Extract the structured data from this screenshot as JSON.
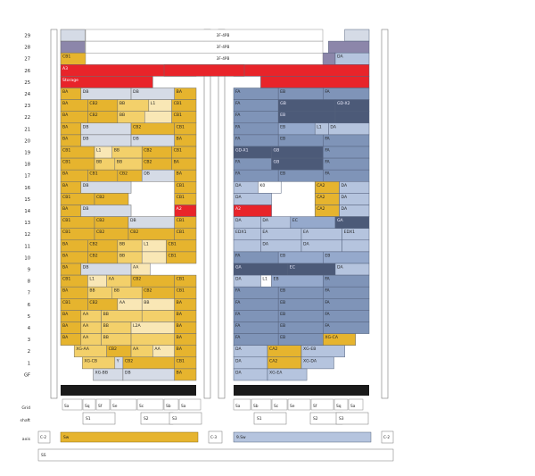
{
  "colors": {
    "gold": "#e6b42e",
    "goldDark": "#cf9a1c",
    "goldLight": "#f3d06a",
    "cream": "#f9e7b5",
    "lightGrey": "#d5dbe6",
    "blue": "#7f94b8",
    "blueMid": "#95a9cc",
    "blueLight": "#b5c4de",
    "navy": "#4c5a78",
    "red": "#e8242a",
    "purple": "#8c86aa",
    "black": "#1a1a1a"
  },
  "floors": [
    "29",
    "28",
    "27",
    "26",
    "25",
    "24",
    "23",
    "22",
    "21",
    "20",
    "19",
    "18",
    "17",
    "16",
    "15",
    "14",
    "13",
    "12",
    "11",
    "10",
    "9",
    "8",
    "7",
    "6",
    "5",
    "4",
    "3",
    "2",
    "1",
    "GF"
  ],
  "top_band_labels": [
    "3F-4PB",
    "3F-4PB",
    "3F-4PB"
  ],
  "left_bank": {
    "29": [
      [
        0,
        0.18,
        "lightGrey",
        ""
      ],
      [
        0.18,
        1,
        "white",
        ""
      ]
    ],
    "28": [
      [
        0,
        0.18,
        "purple",
        ""
      ],
      [
        0.18,
        1,
        "white",
        ""
      ]
    ],
    "27": [
      [
        0,
        0.27,
        "gold",
        "CB1"
      ],
      [
        0.27,
        0.38,
        "purple",
        ""
      ],
      [
        0.38,
        1,
        "white",
        ""
      ]
    ],
    "26": [
      [
        0,
        1,
        "red",
        "A3"
      ]
    ],
    "25": [
      [
        0,
        0.68,
        "red",
        "Storage"
      ],
      [
        0.68,
        1,
        "white",
        ""
      ]
    ],
    "24": [
      [
        0,
        0.15,
        "gold",
        "BA"
      ],
      [
        0.15,
        0.52,
        "lightGrey",
        "DB"
      ],
      [
        0.52,
        0.84,
        "lightGrey",
        "DB"
      ],
      [
        0.84,
        1,
        "gold",
        "BA"
      ]
    ],
    "23": [
      [
        0,
        0.2,
        "gold",
        "BA"
      ],
      [
        0.2,
        0.42,
        "gold",
        "CB2"
      ],
      [
        0.42,
        0.65,
        "goldLight",
        "BB"
      ],
      [
        0.65,
        0.82,
        "cream",
        "L1"
      ],
      [
        0.82,
        1,
        "gold",
        "CB1"
      ]
    ],
    "22": [
      [
        0,
        0.2,
        "gold",
        "BA"
      ],
      [
        0.2,
        0.42,
        "gold",
        "CB2"
      ],
      [
        0.42,
        0.62,
        "goldLight",
        "BB"
      ],
      [
        0.62,
        0.82,
        "cream",
        ""
      ],
      [
        0.82,
        1,
        "gold",
        "CB1"
      ]
    ],
    "21": [
      [
        0,
        0.15,
        "gold",
        "BA"
      ],
      [
        0.15,
        0.52,
        "lightGrey",
        "DB"
      ],
      [
        0.52,
        0.84,
        "gold",
        "CB2"
      ],
      [
        0.84,
        1,
        "gold",
        "CB1"
      ]
    ],
    "20": [
      [
        0,
        0.15,
        "gold",
        "BA"
      ],
      [
        0.15,
        0.52,
        "lightGrey",
        "DB"
      ],
      [
        0.52,
        0.84,
        "lightGrey",
        "DB"
      ],
      [
        0.84,
        1,
        "gold",
        "BA"
      ]
    ],
    "19": [
      [
        0,
        0.25,
        "gold",
        "CB1"
      ],
      [
        0.25,
        0.38,
        "cream",
        "L1"
      ],
      [
        0.38,
        0.6,
        "goldLight",
        "BB"
      ],
      [
        0.6,
        0.82,
        "gold",
        "CB2"
      ],
      [
        0.82,
        1,
        "gold",
        "CB1"
      ]
    ],
    "18": [
      [
        0,
        0.25,
        "gold",
        "CB1"
      ],
      [
        0.25,
        0.4,
        "goldLight",
        "BB"
      ],
      [
        0.4,
        0.6,
        "goldLight",
        "BB"
      ],
      [
        0.6,
        0.82,
        "gold",
        "CB2"
      ],
      [
        0.82,
        1,
        "gold",
        "BA"
      ]
    ],
    "17": [
      [
        0,
        0.2,
        "gold",
        "BA"
      ],
      [
        0.2,
        0.42,
        "gold",
        "CB1"
      ],
      [
        0.42,
        0.6,
        "gold",
        "CB2"
      ],
      [
        0.6,
        0.84,
        "lightGrey",
        "DB"
      ],
      [
        0.84,
        1,
        "gold",
        "BA"
      ]
    ],
    "16": [
      [
        0,
        0.15,
        "gold",
        "BA"
      ],
      [
        0.15,
        0.52,
        "lightGrey",
        "DB"
      ],
      [
        0.52,
        0.84,
        "white",
        ""
      ],
      [
        0.84,
        1,
        "gold",
        "CB1"
      ]
    ],
    "15": [
      [
        0,
        0.25,
        "gold",
        "CB1"
      ],
      [
        0.25,
        0.5,
        "gold",
        "CB2"
      ],
      [
        0.5,
        0.84,
        "white",
        ""
      ],
      [
        0.84,
        1,
        "gold",
        "CB1"
      ]
    ],
    "14": [
      [
        0,
        0.15,
        "gold",
        "BA"
      ],
      [
        0.15,
        0.52,
        "lightGrey",
        "DB"
      ],
      [
        0.52,
        0.84,
        "white",
        ""
      ],
      [
        0.84,
        1,
        "red",
        "A2"
      ]
    ],
    "13": [
      [
        0,
        0.25,
        "gold",
        "CB1"
      ],
      [
        0.25,
        0.5,
        "gold",
        "CB2"
      ],
      [
        0.5,
        0.84,
        "lightGrey",
        "DB"
      ],
      [
        0.84,
        1,
        "gold",
        "CB1"
      ]
    ],
    "12": [
      [
        0,
        0.25,
        "gold",
        "CB1"
      ],
      [
        0.25,
        0.5,
        "gold",
        "CB2"
      ],
      [
        0.5,
        0.84,
        "gold",
        "CB2"
      ],
      [
        0.84,
        1,
        "gold",
        "CB1"
      ]
    ],
    "11": [
      [
        0,
        0.2,
        "gold",
        "BA"
      ],
      [
        0.2,
        0.42,
        "gold",
        "CB2"
      ],
      [
        0.42,
        0.6,
        "goldLight",
        "BB"
      ],
      [
        0.6,
        0.78,
        "cream",
        "L1"
      ],
      [
        0.78,
        1,
        "gold",
        "CB1"
      ]
    ],
    "10": [
      [
        0,
        0.2,
        "gold",
        "BA"
      ],
      [
        0.2,
        0.42,
        "gold",
        "CB2"
      ],
      [
        0.42,
        0.6,
        "goldLight",
        "BB"
      ],
      [
        0.6,
        0.78,
        "cream",
        ""
      ],
      [
        0.78,
        1,
        "gold",
        "CB1"
      ]
    ],
    "9": [
      [
        0,
        0.15,
        "gold",
        "BA"
      ],
      [
        0.15,
        0.52,
        "lightGrey",
        "DB"
      ],
      [
        0.52,
        0.66,
        "cream",
        "AA"
      ],
      [
        0.66,
        1,
        "white",
        ""
      ]
    ],
    "8": [
      [
        0,
        0.2,
        "gold",
        "CB1"
      ],
      [
        0.2,
        0.34,
        "cream",
        "L1"
      ],
      [
        0.34,
        0.52,
        "goldLight",
        "AA"
      ],
      [
        0.52,
        0.84,
        "gold",
        "CB2"
      ],
      [
        0.84,
        1,
        "gold",
        "CB1"
      ]
    ],
    "7": [
      [
        0,
        0.2,
        "gold",
        "BA"
      ],
      [
        0.2,
        0.38,
        "goldLight",
        "BB"
      ],
      [
        0.38,
        0.6,
        "goldLight",
        "BB"
      ],
      [
        0.6,
        0.84,
        "gold",
        "CB2"
      ],
      [
        0.84,
        1,
        "gold",
        "CB1"
      ]
    ],
    "6": [
      [
        0,
        0.2,
        "gold",
        "CB1"
      ],
      [
        0.2,
        0.42,
        "gold",
        "CB2"
      ],
      [
        0.42,
        0.6,
        "cream",
        "AA"
      ],
      [
        0.6,
        0.84,
        "cream",
        "BB"
      ],
      [
        0.84,
        1,
        "gold",
        "BA"
      ]
    ],
    "5": [
      [
        0,
        0.15,
        "gold",
        "BA"
      ],
      [
        0.15,
        0.3,
        "goldLight",
        "AA"
      ],
      [
        0.3,
        0.6,
        "goldLight",
        "BB"
      ],
      [
        0.6,
        0.84,
        "goldLight",
        ""
      ],
      [
        0.84,
        1,
        "gold",
        "BA"
      ]
    ],
    "4": [
      [
        0,
        0.15,
        "gold",
        "BA"
      ],
      [
        0.15,
        0.3,
        "goldLight",
        "AA"
      ],
      [
        0.3,
        0.52,
        "goldLight",
        "BB"
      ],
      [
        0.52,
        0.84,
        "cream",
        "L2A"
      ],
      [
        0.84,
        1,
        "gold",
        "BA"
      ]
    ],
    "3": [
      [
        0,
        0.15,
        "gold",
        "BA"
      ],
      [
        0.15,
        0.3,
        "goldLight",
        "AA"
      ],
      [
        0.3,
        0.52,
        "goldLight",
        "BB"
      ],
      [
        0.52,
        0.84,
        "goldLight",
        ""
      ],
      [
        0.84,
        1,
        "gold",
        "BA"
      ]
    ],
    "2": [
      [
        0,
        0.1,
        "white",
        ""
      ],
      [
        0.1,
        0.34,
        "goldLight",
        "XG-AA"
      ],
      [
        0.34,
        0.52,
        "gold",
        "CB2"
      ],
      [
        0.52,
        0.68,
        "goldLight",
        "AA"
      ],
      [
        0.68,
        0.84,
        "cream",
        "AA"
      ],
      [
        0.84,
        1,
        "gold",
        "BA"
      ]
    ],
    "1": [
      [
        0,
        0.16,
        "white",
        ""
      ],
      [
        0.16,
        0.4,
        "goldLight",
        "XG-CB"
      ],
      [
        0.4,
        0.46,
        "lightGrey",
        "Y"
      ],
      [
        0.46,
        0.84,
        "gold",
        "CB2"
      ],
      [
        0.84,
        1,
        "gold",
        "CB1"
      ]
    ],
    "0": [
      [
        0,
        0.24,
        "white",
        ""
      ],
      [
        0.24,
        0.46,
        "lightGrey",
        "XG-BB"
      ],
      [
        0.46,
        0.84,
        "lightGrey",
        "DB"
      ],
      [
        0.84,
        1,
        "gold",
        "BA"
      ]
    ],
    "GF": [
      [
        0,
        0.46,
        "white",
        ""
      ],
      [
        0.46,
        0.84,
        "gold",
        "CB2"
      ],
      [
        0.84,
        1,
        "gold",
        "CB1"
      ]
    ]
  },
  "right_bank": {
    "29": [
      [
        0,
        0.82,
        "white",
        ""
      ],
      [
        0.82,
        1,
        "lightGrey",
        ""
      ]
    ],
    "28": [
      [
        0,
        0.7,
        "white",
        ""
      ],
      [
        0.7,
        1,
        "purple",
        ""
      ]
    ],
    "27": [
      [
        0,
        0.6,
        "white",
        ""
      ],
      [
        0.6,
        0.75,
        "purple",
        ""
      ],
      [
        0.75,
        1,
        "blueLight",
        "DA"
      ]
    ],
    "26": [
      [
        0,
        1,
        "red",
        ""
      ]
    ],
    "25": [
      [
        0,
        0.2,
        "white",
        ""
      ],
      [
        0.2,
        1,
        "red",
        ""
      ]
    ],
    "24": [
      [
        0,
        0.33,
        "blue",
        "FA"
      ],
      [
        0.33,
        0.66,
        "blue",
        "EB"
      ],
      [
        0.66,
        1,
        "blue",
        "FA"
      ]
    ],
    "23": [
      [
        0,
        0.33,
        "blue",
        "FA"
      ],
      [
        0.33,
        0.75,
        "navy",
        "GB"
      ],
      [
        0.75,
        1,
        "navy",
        "GD-X2"
      ]
    ],
    "22": [
      [
        0,
        0.33,
        "blue",
        "FA"
      ],
      [
        0.33,
        0.75,
        "navy",
        "EB"
      ],
      [
        0.75,
        1,
        "navy",
        ""
      ]
    ],
    "21": [
      [
        0,
        0.33,
        "blue",
        "FA"
      ],
      [
        0.33,
        0.6,
        "blueMid",
        "EB"
      ],
      [
        0.6,
        0.7,
        "blueLight",
        "L1"
      ],
      [
        0.7,
        1,
        "blueLight",
        "DA"
      ]
    ],
    "20": [
      [
        0,
        0.33,
        "blue",
        "FA"
      ],
      [
        0.33,
        0.66,
        "blue",
        "EB"
      ],
      [
        0.66,
        1,
        "blue",
        "FA"
      ]
    ],
    "19": [
      [
        0,
        0.28,
        "navy",
        "GD-X1"
      ],
      [
        0.28,
        0.66,
        "navy",
        "GB"
      ],
      [
        0.66,
        1,
        "blue",
        "FA"
      ]
    ],
    "18": [
      [
        0,
        0.28,
        "blue",
        "FA"
      ],
      [
        0.28,
        0.66,
        "navy",
        "GB"
      ],
      [
        0.66,
        1,
        "blue",
        "FA"
      ]
    ],
    "17": [
      [
        0,
        0.33,
        "blue",
        "FA"
      ],
      [
        0.33,
        0.66,
        "blue",
        "EB"
      ],
      [
        0.66,
        1,
        "blue",
        "FA"
      ]
    ],
    "16": [
      [
        0,
        0.18,
        "blueLight",
        "DA"
      ],
      [
        0.18,
        0.35,
        "white",
        "K0"
      ],
      [
        0.35,
        0.6,
        "white",
        ""
      ],
      [
        0.6,
        0.78,
        "gold",
        "CA2"
      ],
      [
        0.78,
        1,
        "blueLight",
        "DA"
      ]
    ],
    "15": [
      [
        0,
        0.28,
        "blueLight",
        "DA"
      ],
      [
        0.28,
        0.6,
        "white",
        ""
      ],
      [
        0.6,
        0.78,
        "gold",
        "CA2"
      ],
      [
        0.78,
        1,
        "blueLight",
        "DA"
      ]
    ],
    "14": [
      [
        0,
        0.28,
        "red",
        "A2"
      ],
      [
        0.28,
        0.6,
        "white",
        ""
      ],
      [
        0.6,
        0.78,
        "gold",
        "CA2"
      ],
      [
        0.78,
        1,
        "blueLight",
        "DA"
      ]
    ],
    "13": [
      [
        0,
        0.2,
        "blueLight",
        "DA"
      ],
      [
        0.2,
        0.42,
        "blueLight",
        "DA"
      ],
      [
        0.42,
        0.75,
        "blueMid",
        "EC"
      ],
      [
        0.75,
        1,
        "navy",
        "GA"
      ]
    ],
    "12": [
      [
        0,
        0.2,
        "blueLight",
        "EDX1"
      ],
      [
        0.2,
        0.5,
        "blueLight",
        "EA"
      ],
      [
        0.5,
        0.8,
        "blueLight",
        "EA"
      ],
      [
        0.8,
        1,
        "blueLight",
        "EDX1"
      ]
    ],
    "11": [
      [
        0,
        0.2,
        "blueLight",
        ""
      ],
      [
        0.2,
        0.5,
        "blueLight",
        "DA"
      ],
      [
        0.5,
        0.8,
        "blueLight",
        "DA"
      ],
      [
        0.8,
        1,
        "blueLight",
        ""
      ]
    ],
    "10": [
      [
        0,
        0.33,
        "blue",
        "FA"
      ],
      [
        0.33,
        0.66,
        "blueMid",
        "EB"
      ],
      [
        0.66,
        1,
        "blueMid",
        "EB"
      ]
    ],
    "9": [
      [
        0,
        0.4,
        "navy",
        "GA"
      ],
      [
        0.4,
        0.75,
        "navy",
        "EC"
      ],
      [
        0.75,
        1,
        "blueLight",
        "DA"
      ]
    ],
    "8": [
      [
        0,
        0.2,
        "blueLight",
        "DA"
      ],
      [
        0.2,
        0.28,
        "white",
        "L1"
      ],
      [
        0.28,
        0.66,
        "blueMid",
        "EB"
      ],
      [
        0.66,
        1,
        "blue",
        "FA"
      ]
    ],
    "7": [
      [
        0,
        0.33,
        "blue",
        "FA"
      ],
      [
        0.33,
        0.66,
        "blue",
        "EB"
      ],
      [
        0.66,
        1,
        "blue",
        "FA"
      ]
    ],
    "6": [
      [
        0,
        0.33,
        "blue",
        "FA"
      ],
      [
        0.33,
        0.66,
        "blue",
        "EB"
      ],
      [
        0.66,
        1,
        "blue",
        "FA"
      ]
    ],
    "5": [
      [
        0,
        0.33,
        "blue",
        "FA"
      ],
      [
        0.33,
        0.66,
        "blue",
        "EB"
      ],
      [
        0.66,
        1,
        "blue",
        "FA"
      ]
    ],
    "4": [
      [
        0,
        0.33,
        "blue",
        "FA"
      ],
      [
        0.33,
        0.66,
        "blue",
        "EB"
      ],
      [
        0.66,
        1,
        "blue",
        "FA"
      ]
    ],
    "3": [
      [
        0,
        0.33,
        "blue",
        "FA"
      ],
      [
        0.33,
        0.66,
        "blue",
        "EB"
      ],
      [
        0.66,
        0.9,
        "gold",
        "XG-CA"
      ],
      [
        0.9,
        1,
        "white",
        ""
      ]
    ],
    "2": [
      [
        0,
        0.25,
        "blueLight",
        "DA"
      ],
      [
        0.25,
        0.5,
        "gold",
        "CA2"
      ],
      [
        0.5,
        0.82,
        "blueLight",
        "XG-EB"
      ],
      [
        0.82,
        1,
        "white",
        ""
      ]
    ],
    "1": [
      [
        0,
        0.25,
        "blueLight",
        "DA"
      ],
      [
        0.25,
        0.5,
        "gold",
        "CA2"
      ],
      [
        0.5,
        0.74,
        "blueLight",
        "XG-DA"
      ],
      [
        0.74,
        1,
        "white",
        ""
      ]
    ],
    "0": [
      [
        0,
        0.25,
        "blueLight",
        "DA"
      ],
      [
        0.25,
        0.54,
        "blueLight",
        "XG-EA"
      ],
      [
        0.54,
        1,
        "white",
        ""
      ]
    ]
  },
  "grid_labels_left": [
    "Sa",
    "Sq",
    "Sf",
    "Se",
    "Sc",
    "Sb",
    "Sa"
  ],
  "grid_labels_right": [
    "Sa",
    "Sb",
    "Sc",
    "Se",
    "Sf",
    "Sq",
    "Sa"
  ],
  "row_labels": {
    "grid": "Grid",
    "shaft": "shaft",
    "axis": "axis"
  },
  "shaft_labels": [
    "S1",
    "S2",
    "S3",
    "S1",
    "S2",
    "S3"
  ],
  "bottom": {
    "left_tag": "C-2",
    "mid_tag": "C-3",
    "right_tag": "C-2",
    "left_bar": "Sw",
    "right_bar": "9.Sw",
    "foot_bar": "SS"
  }
}
